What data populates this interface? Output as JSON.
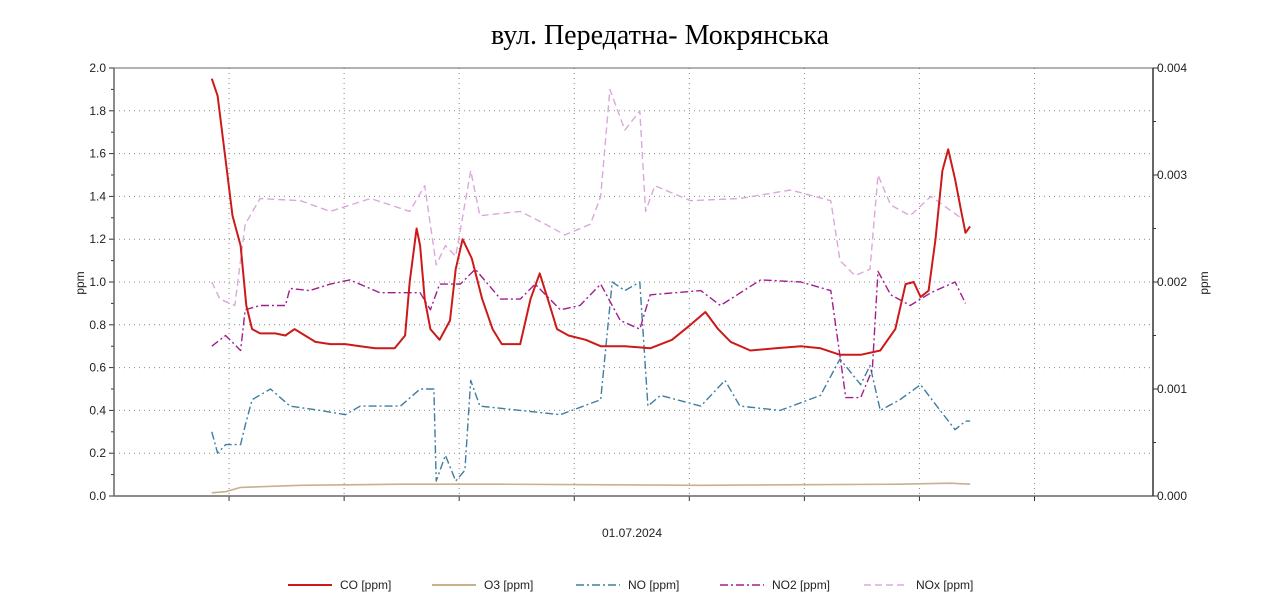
{
  "chart_data": {
    "type": "line",
    "title": "вул. Передатна- Мокрянська",
    "xlabel": "01.07.2024",
    "ylabel": "ppm",
    "y2label": "ppm",
    "ylim": [
      0,
      2.0
    ],
    "y2lim": [
      0,
      0.004
    ],
    "xlim": [
      0,
      9.03
    ],
    "x_units": "relative time (grid intervals)",
    "yticks": [
      "0.0",
      "0.2",
      "0.4",
      "0.6",
      "0.8",
      "1.0",
      "1.2",
      "1.4",
      "1.6",
      "1.8",
      "2.0"
    ],
    "y2ticks": [
      "0.000",
      "0.001",
      "0.002",
      "0.003",
      "0.004"
    ],
    "x_gridlines": [
      1,
      2,
      3,
      4,
      5,
      6,
      7,
      8
    ],
    "grid": true,
    "legend_position": "bottom",
    "series": [
      {
        "name": "CO [ppm]",
        "color": "#cc1a1a",
        "style": "solid",
        "width": 2,
        "points": [
          [
            0.85,
            1.95
          ],
          [
            0.9,
            1.87
          ],
          [
            0.97,
            1.57
          ],
          [
            1.03,
            1.31
          ],
          [
            1.1,
            1.17
          ],
          [
            1.15,
            0.89
          ],
          [
            1.2,
            0.78
          ],
          [
            1.27,
            0.76
          ],
          [
            1.4,
            0.76
          ],
          [
            1.49,
            0.75
          ],
          [
            1.57,
            0.78
          ],
          [
            1.66,
            0.75
          ],
          [
            1.75,
            0.72
          ],
          [
            1.88,
            0.71
          ],
          [
            2.01,
            0.71
          ],
          [
            2.14,
            0.7
          ],
          [
            2.27,
            0.69
          ],
          [
            2.44,
            0.69
          ],
          [
            2.53,
            0.75
          ],
          [
            2.57,
            1.0
          ],
          [
            2.63,
            1.25
          ],
          [
            2.66,
            1.17
          ],
          [
            2.7,
            0.92
          ],
          [
            2.75,
            0.78
          ],
          [
            2.83,
            0.73
          ],
          [
            2.92,
            0.82
          ],
          [
            2.97,
            1.06
          ],
          [
            3.03,
            1.2
          ],
          [
            3.11,
            1.11
          ],
          [
            3.2,
            0.92
          ],
          [
            3.29,
            0.78
          ],
          [
            3.37,
            0.71
          ],
          [
            3.53,
            0.71
          ],
          [
            3.62,
            0.92
          ],
          [
            3.7,
            1.04
          ],
          [
            3.77,
            0.92
          ],
          [
            3.85,
            0.78
          ],
          [
            3.95,
            0.75
          ],
          [
            4.1,
            0.73
          ],
          [
            4.23,
            0.7
          ],
          [
            4.44,
            0.7
          ],
          [
            4.66,
            0.69
          ],
          [
            4.85,
            0.73
          ],
          [
            5.01,
            0.8
          ],
          [
            5.14,
            0.86
          ],
          [
            5.25,
            0.78
          ],
          [
            5.36,
            0.72
          ],
          [
            5.53,
            0.68
          ],
          [
            5.75,
            0.69
          ],
          [
            5.97,
            0.7
          ],
          [
            6.14,
            0.69
          ],
          [
            6.31,
            0.66
          ],
          [
            6.49,
            0.66
          ],
          [
            6.66,
            0.68
          ],
          [
            6.79,
            0.78
          ],
          [
            6.88,
            0.99
          ],
          [
            6.95,
            1.0
          ],
          [
            7.01,
            0.93
          ],
          [
            7.08,
            0.96
          ],
          [
            7.14,
            1.2
          ],
          [
            7.2,
            1.52
          ],
          [
            7.25,
            1.62
          ],
          [
            7.31,
            1.48
          ],
          [
            7.36,
            1.34
          ],
          [
            7.4,
            1.23
          ],
          [
            7.44,
            1.26
          ]
        ]
      },
      {
        "name": "O3 [ppm]",
        "color": "#c9b08c",
        "style": "solid",
        "width": 1.6,
        "points": [
          [
            0.85,
            0.015
          ],
          [
            0.97,
            0.02
          ],
          [
            1.1,
            0.04
          ],
          [
            1.62,
            0.05
          ],
          [
            2.49,
            0.055
          ],
          [
            3.36,
            0.055
          ],
          [
            5.1,
            0.05
          ],
          [
            6.83,
            0.055
          ],
          [
            7.27,
            0.06
          ],
          [
            7.44,
            0.055
          ]
        ]
      },
      {
        "name": "NO [ppm]",
        "color": "#3f7ea0",
        "style": "dashdot",
        "width": 1.4,
        "points": [
          [
            0.85,
            0.3
          ],
          [
            0.9,
            0.2
          ],
          [
            0.97,
            0.24
          ],
          [
            1.1,
            0.24
          ],
          [
            1.14,
            0.33
          ],
          [
            1.2,
            0.45
          ],
          [
            1.36,
            0.5
          ],
          [
            1.53,
            0.42
          ],
          [
            1.79,
            0.4
          ],
          [
            2.01,
            0.38
          ],
          [
            2.14,
            0.42
          ],
          [
            2.49,
            0.42
          ],
          [
            2.66,
            0.5
          ],
          [
            2.78,
            0.5
          ],
          [
            2.8,
            0.07
          ],
          [
            2.88,
            0.19
          ],
          [
            2.97,
            0.07
          ],
          [
            3.05,
            0.12
          ],
          [
            3.1,
            0.54
          ],
          [
            3.18,
            0.42
          ],
          [
            3.53,
            0.4
          ],
          [
            3.88,
            0.38
          ],
          [
            4.23,
            0.45
          ],
          [
            4.33,
            1.0
          ],
          [
            4.44,
            0.96
          ],
          [
            4.57,
            1.0
          ],
          [
            4.64,
            0.42
          ],
          [
            4.75,
            0.47
          ],
          [
            5.1,
            0.42
          ],
          [
            5.31,
            0.54
          ],
          [
            5.44,
            0.42
          ],
          [
            5.79,
            0.4
          ],
          [
            6.14,
            0.47
          ],
          [
            6.31,
            0.64
          ],
          [
            6.49,
            0.52
          ],
          [
            6.57,
            0.61
          ],
          [
            6.66,
            0.4
          ],
          [
            6.83,
            0.45
          ],
          [
            7.01,
            0.52
          ],
          [
            7.18,
            0.4
          ],
          [
            7.31,
            0.31
          ],
          [
            7.4,
            0.35
          ],
          [
            7.44,
            0.35
          ]
        ]
      },
      {
        "name": "NO2 [ppm]",
        "color": "#a01e8c",
        "style": "dashdot",
        "width": 1.4,
        "points": [
          [
            0.85,
            0.7
          ],
          [
            0.97,
            0.75
          ],
          [
            1.1,
            0.68
          ],
          [
            1.14,
            0.87
          ],
          [
            1.27,
            0.89
          ],
          [
            1.49,
            0.89
          ],
          [
            1.53,
            0.97
          ],
          [
            1.7,
            0.96
          ],
          [
            1.88,
            0.99
          ],
          [
            2.05,
            1.01
          ],
          [
            2.31,
            0.95
          ],
          [
            2.66,
            0.95
          ],
          [
            2.75,
            0.87
          ],
          [
            2.83,
            0.99
          ],
          [
            3.01,
            0.99
          ],
          [
            3.14,
            1.06
          ],
          [
            3.36,
            0.92
          ],
          [
            3.53,
            0.92
          ],
          [
            3.66,
            0.99
          ],
          [
            3.88,
            0.87
          ],
          [
            4.05,
            0.89
          ],
          [
            4.23,
            0.99
          ],
          [
            4.4,
            0.82
          ],
          [
            4.57,
            0.78
          ],
          [
            4.66,
            0.94
          ],
          [
            5.1,
            0.96
          ],
          [
            5.27,
            0.89
          ],
          [
            5.62,
            1.01
          ],
          [
            5.97,
            1.0
          ],
          [
            6.23,
            0.96
          ],
          [
            6.36,
            0.46
          ],
          [
            6.49,
            0.46
          ],
          [
            6.59,
            0.59
          ],
          [
            6.64,
            1.05
          ],
          [
            6.75,
            0.94
          ],
          [
            6.92,
            0.89
          ],
          [
            7.1,
            0.95
          ],
          [
            7.31,
            1.0
          ],
          [
            7.4,
            0.9
          ]
        ]
      },
      {
        "name": "NOx [ppm]",
        "color": "#dba8dc",
        "style": "dash",
        "width": 1.4,
        "points": [
          [
            0.85,
            1.0
          ],
          [
            0.92,
            0.92
          ],
          [
            1.05,
            0.89
          ],
          [
            1.14,
            1.27
          ],
          [
            1.27,
            1.39
          ],
          [
            1.62,
            1.38
          ],
          [
            1.88,
            1.33
          ],
          [
            2.23,
            1.39
          ],
          [
            2.57,
            1.33
          ],
          [
            2.7,
            1.45
          ],
          [
            2.8,
            1.08
          ],
          [
            2.88,
            1.17
          ],
          [
            2.97,
            1.12
          ],
          [
            3.1,
            1.52
          ],
          [
            3.18,
            1.31
          ],
          [
            3.53,
            1.33
          ],
          [
            3.75,
            1.27
          ],
          [
            3.92,
            1.22
          ],
          [
            4.14,
            1.27
          ],
          [
            4.23,
            1.4
          ],
          [
            4.31,
            1.9
          ],
          [
            4.44,
            1.71
          ],
          [
            4.57,
            1.8
          ],
          [
            4.62,
            1.33
          ],
          [
            4.7,
            1.45
          ],
          [
            5.01,
            1.38
          ],
          [
            5.44,
            1.39
          ],
          [
            5.88,
            1.43
          ],
          [
            6.23,
            1.38
          ],
          [
            6.31,
            1.1
          ],
          [
            6.44,
            1.03
          ],
          [
            6.57,
            1.06
          ],
          [
            6.64,
            1.5
          ],
          [
            6.75,
            1.36
          ],
          [
            6.92,
            1.31
          ],
          [
            7.1,
            1.4
          ],
          [
            7.36,
            1.3
          ]
        ]
      }
    ]
  }
}
